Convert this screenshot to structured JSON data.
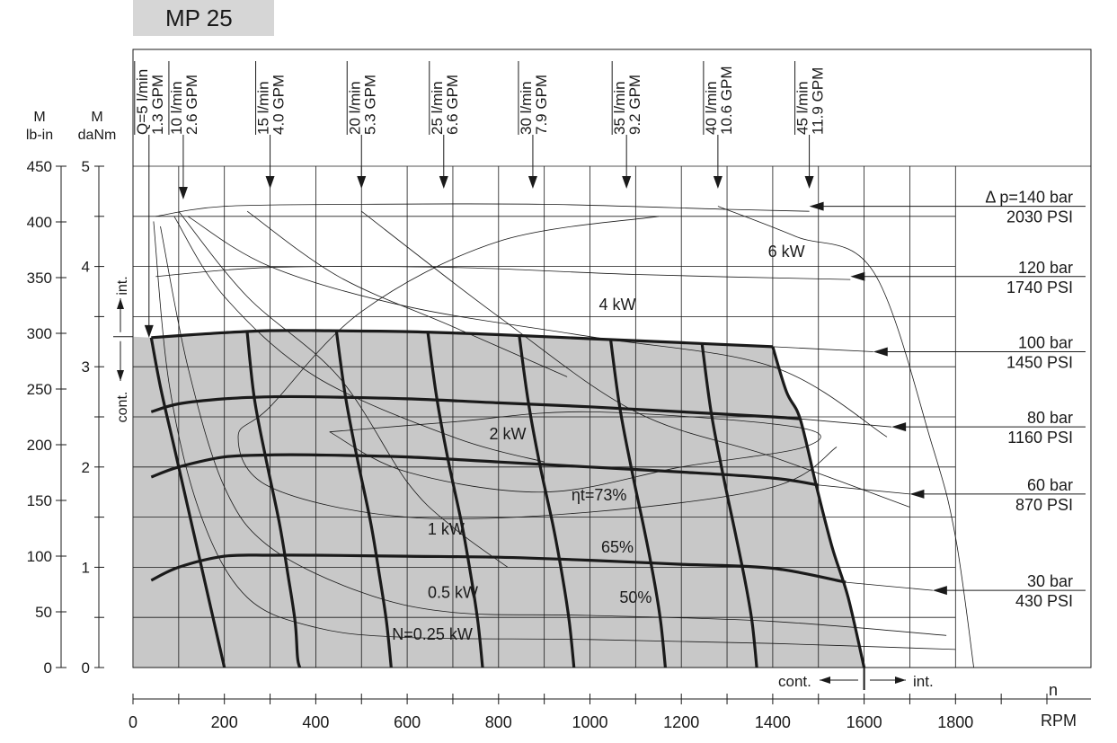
{
  "title": "MP 25",
  "chart_data": {
    "type": "line",
    "xlabel_top": "n",
    "xlabel_bottom": "RPM",
    "xlim": [
      0,
      2000
    ],
    "x_ticks": [
      "0",
      "200",
      "400",
      "600",
      "800",
      "1000",
      "1200",
      "1400",
      "1600",
      "1800"
    ],
    "y_axes": {
      "lbin": {
        "label_line1": "M",
        "label_line2": "lb-in",
        "lim": [
          0,
          450
        ],
        "ticks": [
          "0",
          "50",
          "100",
          "150",
          "200",
          "250",
          "300",
          "350",
          "400",
          "450"
        ]
      },
      "danm": {
        "label_line1": "M",
        "label_line2": "daNm",
        "lim": [
          0,
          5
        ],
        "ticks": [
          "0",
          "1",
          "2",
          "3",
          "4",
          "5"
        ]
      }
    },
    "regions": {
      "cont_label": "cont.",
      "int_label": "int.",
      "cont_limit_rpm": 1600,
      "cont_limit_danm": 3.3
    },
    "flow_labels": [
      {
        "l": "Q=5 l/min",
        "g": "1.3 GPM",
        "rpm": 35
      },
      {
        "l": "10 l/min",
        "g": "2.6 GPM",
        "rpm": 110
      },
      {
        "l": "15 l/min",
        "g": "4.0 GPM",
        "rpm": 300
      },
      {
        "l": "20 l/min",
        "g": "5.3 GPM",
        "rpm": 500
      },
      {
        "l": "25 l/min",
        "g": "6.6 GPM",
        "rpm": 680
      },
      {
        "l": "30 l/min",
        "g": "7.9 GPM",
        "rpm": 875
      },
      {
        "l": "35 l/min",
        "g": "9.2 GPM",
        "rpm": 1080
      },
      {
        "l": "40 l/min",
        "g": "10.6 GPM",
        "rpm": 1280
      },
      {
        "l": "45 l/min",
        "g": "11.9 GPM",
        "rpm": 1480
      }
    ],
    "pressure_labels": [
      {
        "bar": "Δ p=140 bar",
        "psi": "2030 PSI",
        "at_rpm": 1480,
        "at_danm": 4.6
      },
      {
        "bar": "120 bar",
        "psi": "1740 PSI",
        "at_rpm": 1570,
        "at_danm": 3.9
      },
      {
        "bar": "100 bar",
        "psi": "1450 PSI",
        "at_rpm": 1620,
        "at_danm": 3.15
      },
      {
        "bar": "80 bar",
        "psi": "1160 PSI",
        "at_rpm": 1660,
        "at_danm": 2.4
      },
      {
        "bar": "60 bar",
        "psi": "870 PSI",
        "at_rpm": 1700,
        "at_danm": 1.73
      },
      {
        "bar": "30 bar",
        "psi": "430 PSI",
        "at_rpm": 1750,
        "at_danm": 0.77
      }
    ],
    "power_labels": [
      {
        "text": "6 kW",
        "rpm": 1430,
        "danm": 4.15
      },
      {
        "text": "4 kW",
        "rpm": 1060,
        "danm": 3.62
      },
      {
        "text": "2 kW",
        "rpm": 820,
        "danm": 2.33
      },
      {
        "text": "1 kW",
        "rpm": 685,
        "danm": 1.38
      },
      {
        "text": "0.5 kW",
        "rpm": 700,
        "danm": 0.75
      },
      {
        "text": "N=0.25 kW",
        "rpm": 655,
        "danm": 0.33
      }
    ],
    "efficiency_labels": [
      {
        "text": "ηt=73%",
        "rpm": 1020,
        "danm": 1.72
      },
      {
        "text": "65%",
        "rpm": 1060,
        "danm": 1.2
      },
      {
        "text": "50%",
        "rpm": 1100,
        "danm": 0.7
      }
    ],
    "series": [
      {
        "kind": "pressure",
        "bar": 30,
        "x": [
          40,
          100,
          200,
          300,
          400,
          600,
          800,
          1000,
          1200,
          1400,
          1560
        ],
        "y": [
          0.87,
          1.0,
          1.11,
          1.12,
          1.12,
          1.11,
          1.1,
          1.07,
          1.03,
          0.99,
          0.85
        ]
      },
      {
        "kind": "pressure",
        "bar": 60,
        "x": [
          40,
          100,
          200,
          300,
          400,
          600,
          800,
          1000,
          1200,
          1400,
          1500
        ],
        "y": [
          1.9,
          2.0,
          2.1,
          2.12,
          2.12,
          2.1,
          2.05,
          2.0,
          1.95,
          1.89,
          1.82
        ]
      },
      {
        "kind": "pressure",
        "bar": 80,
        "x": [
          40,
          100,
          200,
          300,
          400,
          600,
          800,
          1000,
          1200,
          1400,
          1460
        ],
        "y": [
          2.55,
          2.63,
          2.68,
          2.7,
          2.7,
          2.68,
          2.64,
          2.6,
          2.55,
          2.5,
          2.48
        ]
      },
      {
        "kind": "pressure",
        "bar": 100,
        "x": [
          40,
          100,
          200,
          300,
          400,
          600,
          800,
          1000,
          1200,
          1400
        ],
        "y": [
          3.29,
          3.31,
          3.34,
          3.36,
          3.36,
          3.35,
          3.32,
          3.28,
          3.24,
          3.2
        ]
      },
      {
        "kind": "flow",
        "lpm": 5,
        "x": [
          40,
          60,
          90,
          120,
          150,
          175,
          200
        ],
        "y": [
          3.29,
          2.8,
          2.2,
          1.6,
          1.0,
          0.5,
          0
        ]
      },
      {
        "kind": "flow",
        "lpm": 10,
        "x": [
          250,
          265,
          290,
          320,
          340,
          355,
          360,
          365
        ],
        "y": [
          3.34,
          2.7,
          2.1,
          1.45,
          0.9,
          0.45,
          0.1,
          0
        ]
      },
      {
        "kind": "flow",
        "lpm": 15,
        "x": [
          445,
          465,
          490,
          520,
          540,
          555,
          565
        ],
        "y": [
          3.36,
          2.7,
          2.1,
          1.45,
          0.9,
          0.45,
          0
        ]
      },
      {
        "kind": "flow",
        "lpm": 20,
        "x": [
          645,
          665,
          690,
          720,
          740,
          755,
          765
        ],
        "y": [
          3.35,
          2.68,
          2.06,
          1.42,
          0.9,
          0.45,
          0
        ]
      },
      {
        "kind": "flow",
        "lpm": 25,
        "x": [
          845,
          865,
          890,
          920,
          940,
          955,
          965
        ],
        "y": [
          3.32,
          2.65,
          2.03,
          1.4,
          0.9,
          0.45,
          0
        ]
      },
      {
        "kind": "flow",
        "lpm": 30,
        "x": [
          1045,
          1065,
          1090,
          1120,
          1140,
          1155,
          1165
        ],
        "y": [
          3.28,
          2.6,
          2.0,
          1.35,
          0.88,
          0.45,
          0
        ]
      },
      {
        "kind": "flow",
        "lpm": 35,
        "x": [
          1245,
          1265,
          1290,
          1320,
          1340,
          1355,
          1365
        ],
        "y": [
          3.24,
          2.55,
          1.95,
          1.3,
          0.85,
          0.45,
          0
        ]
      },
      {
        "kind": "flow",
        "lpm": 40,
        "x": [
          1400,
          1430,
          1460,
          1495,
          1530,
          1565,
          1600
        ],
        "y": [
          3.2,
          2.75,
          2.48,
          1.82,
          1.2,
          0.7,
          0
        ]
      }
    ]
  }
}
